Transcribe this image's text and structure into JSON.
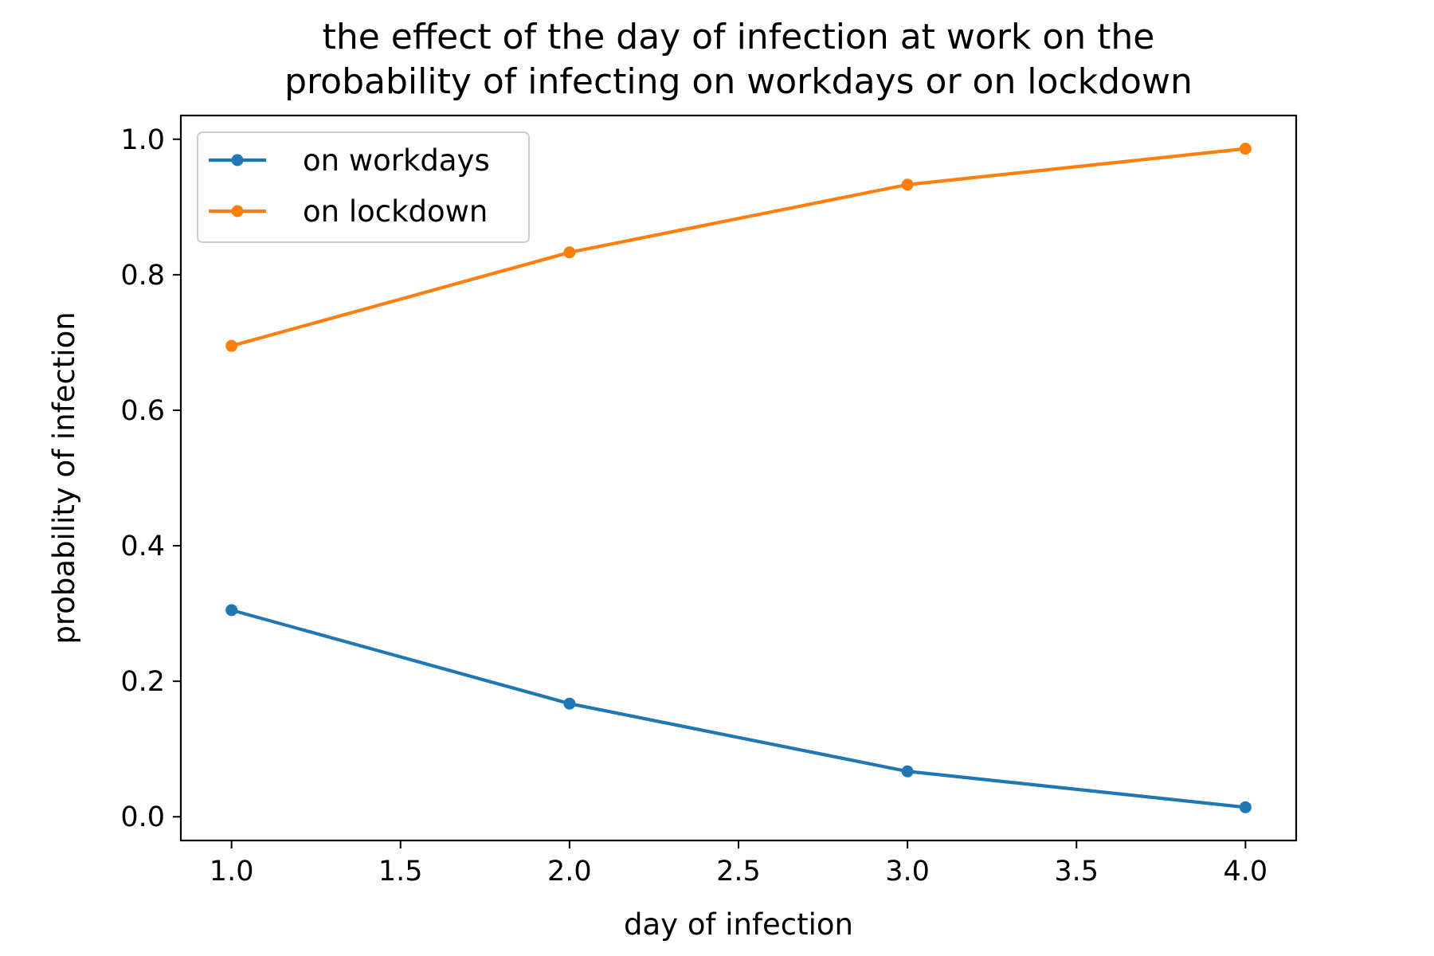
{
  "chart_data": {
    "type": "line",
    "title_lines": [
      "the effect of the day of infection at work on the",
      "probability of infecting on workdays or on lockdown"
    ],
    "xlabel": "day of infection",
    "ylabel": "probability of infection",
    "x": [
      1.0,
      2.0,
      3.0,
      4.0
    ],
    "xlim": [
      0.85,
      4.15
    ],
    "ylim": [
      -0.035,
      1.035
    ],
    "xticks": [
      1.0,
      1.5,
      2.0,
      2.5,
      3.0,
      3.5,
      4.0
    ],
    "xtick_labels": [
      "1.0",
      "1.5",
      "2.0",
      "2.5",
      "3.0",
      "3.5",
      "4.0"
    ],
    "yticks": [
      0.0,
      0.2,
      0.4,
      0.6,
      0.8,
      1.0
    ],
    "ytick_labels": [
      "0.0",
      "0.2",
      "0.4",
      "0.6",
      "0.8",
      "1.0"
    ],
    "series": [
      {
        "name": "on workdays",
        "color": "#1f77b4",
        "values": [
          0.305,
          0.167,
          0.067,
          0.014
        ]
      },
      {
        "name": "on lockdown",
        "color": "#ff7f0e",
        "values": [
          0.695,
          0.833,
          0.933,
          0.986
        ]
      }
    ],
    "grid": false,
    "legend_position": "upper left",
    "marker": "dot"
  }
}
